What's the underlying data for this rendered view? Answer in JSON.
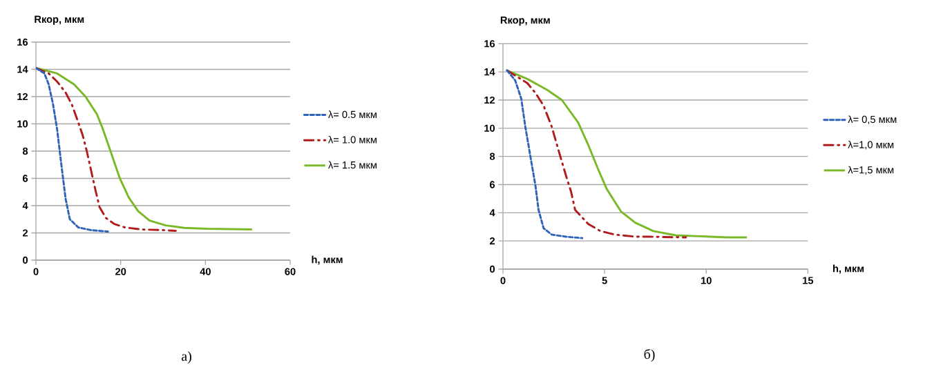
{
  "chart_data": [
    {
      "type": "line",
      "xlabel": "h, мкм",
      "ylabel": "Rкор, мкм",
      "xlim": [
        0,
        60
      ],
      "ylim": [
        0,
        16
      ],
      "xticks": [
        0,
        20,
        40,
        60
      ],
      "yticks": [
        0,
        2,
        4,
        6,
        8,
        10,
        12,
        14,
        16
      ],
      "grid": "y",
      "legend": "right",
      "annotations": [
        "а)"
      ],
      "series": [
        {
          "name": "λ= 0.5 мкм",
          "color": "#2e63b8",
          "line_style": "dashed",
          "x": [
            0,
            2,
            3,
            4,
            5,
            6,
            7,
            8,
            10,
            13,
            17
          ],
          "values": [
            14.1,
            13.7,
            12.9,
            11.5,
            9.6,
            7.0,
            4.5,
            3.0,
            2.4,
            2.2,
            2.1
          ]
        },
        {
          "name": "λ= 1.0 мкм",
          "color": "#b01c1c",
          "line_style": "dashdot",
          "x": [
            0,
            3,
            5,
            7,
            8.5,
            10,
            11,
            12,
            13,
            14,
            15,
            16.5,
            18.5,
            21,
            25,
            30,
            33
          ],
          "values": [
            14.1,
            13.7,
            13.1,
            12.3,
            11.4,
            10.1,
            9.2,
            8.0,
            6.6,
            5.2,
            3.9,
            3.1,
            2.65,
            2.4,
            2.25,
            2.2,
            2.15
          ]
        },
        {
          "name": "λ= 1.5 мкм",
          "color": "#7ab828",
          "line_style": "solid",
          "x": [
            0,
            5,
            9,
            11.7,
            14.4,
            15.7,
            17.6,
            19.8,
            21.9,
            24.1,
            26.8,
            30.6,
            35,
            40.4,
            51
          ],
          "values": [
            14.1,
            13.7,
            12.9,
            12.0,
            10.7,
            9.7,
            8.0,
            6.0,
            4.6,
            3.6,
            2.9,
            2.55,
            2.37,
            2.3,
            2.25
          ]
        }
      ]
    },
    {
      "type": "line",
      "xlabel": "h, мкм",
      "ylabel": "Rкор, мкм",
      "xlim": [
        0,
        15
      ],
      "ylim": [
        0,
        16
      ],
      "xticks": [
        0,
        5,
        10,
        15
      ],
      "yticks": [
        0,
        2,
        4,
        6,
        8,
        10,
        12,
        14,
        16
      ],
      "grid": "y",
      "legend": "right",
      "annotations": [
        "б)"
      ],
      "series": [
        {
          "name": "λ= 0,5 мкм",
          "color": "#2e63b8",
          "line_style": "dashed",
          "x": [
            0.2,
            0.6,
            0.9,
            1.1,
            1.35,
            1.6,
            1.75,
            2,
            2.4,
            3.1,
            3.9
          ],
          "values": [
            14.1,
            13.4,
            12.1,
            10.1,
            8.0,
            5.9,
            4.2,
            2.9,
            2.45,
            2.3,
            2.2
          ]
        },
        {
          "name": "λ=1,0 мкм",
          "color": "#b01c1c",
          "line_style": "dashdot",
          "x": [
            0.2,
            1.2,
            1.6,
            2.0,
            2.4,
            2.6,
            2.8,
            3.15,
            3.35,
            3.55,
            4.2,
            4.8,
            5.5,
            6.5,
            7.2,
            9.0
          ],
          "values": [
            14.1,
            13.2,
            12.5,
            11.6,
            10.1,
            9.1,
            8.1,
            6.4,
            5.5,
            4.2,
            3.2,
            2.7,
            2.45,
            2.3,
            2.3,
            2.25
          ]
        },
        {
          "name": "λ=1,5 мкм",
          "color": "#7ab828",
          "line_style": "solid",
          "x": [
            0.2,
            1.2,
            2.2,
            2.9,
            3.7,
            4.2,
            4.65,
            5.1,
            5.8,
            6.5,
            7.4,
            8.5,
            10.2,
            11,
            12
          ],
          "values": [
            14.1,
            13.5,
            12.7,
            12.0,
            10.4,
            8.8,
            7.2,
            5.7,
            4.1,
            3.3,
            2.7,
            2.4,
            2.3,
            2.25,
            2.25
          ]
        }
      ]
    }
  ]
}
